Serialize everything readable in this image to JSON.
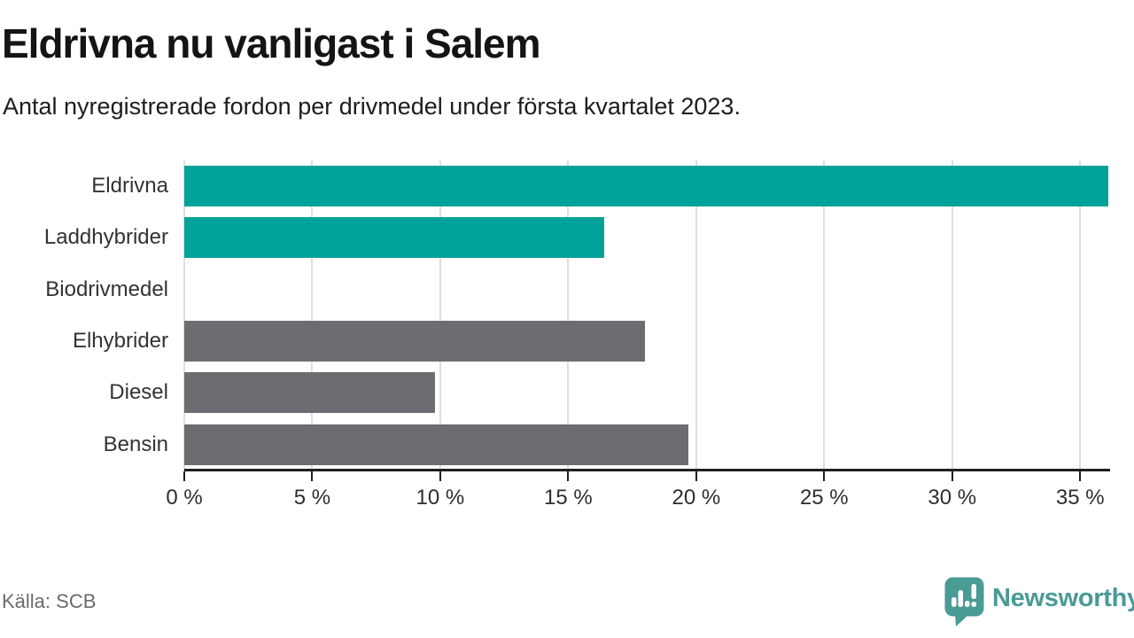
{
  "header": {
    "title": "Eldrivna nu vanligast i Salem",
    "subtitle": "Antal nyregistrerade fordon per drivmedel under första kvartalet 2023."
  },
  "chart_data": {
    "type": "bar",
    "orientation": "horizontal",
    "title": "Eldrivna nu vanligast i Salem",
    "subtitle": "Antal nyregistrerade fordon per drivmedel under första kvartalet 2023.",
    "categories": [
      "Eldrivna",
      "Laddhybrider",
      "Biodrivmedel",
      "Elhybrider",
      "Diesel",
      "Bensin"
    ],
    "values": [
      36.1,
      16.4,
      0,
      18.0,
      9.8,
      19.7
    ],
    "unit": "%",
    "xlim": [
      0,
      36.1
    ],
    "xticks": [
      0,
      5,
      10,
      15,
      20,
      25,
      30,
      35
    ],
    "xtick_labels": [
      "0 %",
      "5 %",
      "10 %",
      "15 %",
      "20 %",
      "25 %",
      "30 %",
      "35 %"
    ],
    "grid": true,
    "legend": "none",
    "bar_colors": [
      "#00a29a",
      "#00a29a",
      "#6d6c70",
      "#6d6c70",
      "#6d6c70",
      "#6d6c70"
    ],
    "highlight_color": "#00a29a",
    "default_color": "#6d6c70"
  },
  "footer": {
    "source": "Källa: SCB",
    "brand": "Newsworthy"
  },
  "colors": {
    "teal_bar": "#00a29a",
    "gray_bar": "#6d6c70",
    "gridline": "#dedede",
    "axis": "#1f1f1f",
    "logo_teal": "#4a9a95",
    "source_text": "#6b6b6b"
  }
}
